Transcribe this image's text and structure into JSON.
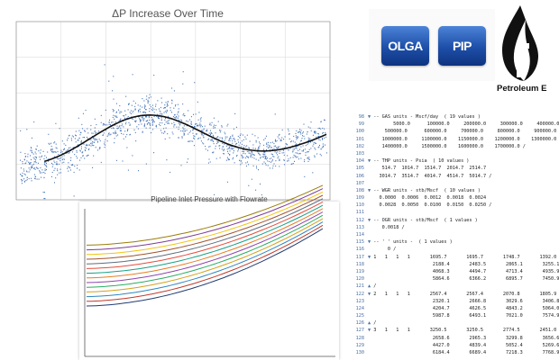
{
  "scatter_chart": {
    "title": "ΔP Increase Over Time",
    "colors": {
      "points": "#4a77b8",
      "trend": "#111111",
      "grid": "#dddddd",
      "frame": "#888888"
    }
  },
  "curve_chart": {
    "title": "Pipeline Inlet Pressure with Flowrate",
    "line_colors": [
      "#1f3b73",
      "#c0392b",
      "#2e86c1",
      "#d4a017",
      "#27ae60",
      "#8e44ad",
      "#e67e22",
      "#16a085",
      "#e74c3c",
      "#5d6d7e",
      "#a0522d",
      "#f1c40f",
      "#7d3c98",
      "#9a7d0a"
    ]
  },
  "logos": {
    "olga": "OLGA",
    "pip": "PIP",
    "petroleum_text": "Petroleum E"
  },
  "code": {
    "lines": [
      {
        "n": "98",
        "fold": "▼",
        "t": " -- GAS units - Mscf/day  ( 19 values )"
      },
      {
        "n": "99",
        "fold": "",
        "t": "        5000.0      100000.0     200000.0     300000.0     400000.0"
      },
      {
        "n": "100",
        "fold": "",
        "t": "     500000.0      600000.0     700000.0     800000.0     900000.0"
      },
      {
        "n": "101",
        "fold": "",
        "t": "    1000000.0     1100000.0    1150000.0    1200000.0    1300000.0"
      },
      {
        "n": "102",
        "fold": "",
        "t": "    1400000.0     1500000.0    1600000.0    1700000.0 /"
      },
      {
        "n": "103",
        "fold": "",
        "t": ""
      },
      {
        "n": "104",
        "fold": "▼",
        "t": " -- THP units - Psia  ( 10 values )"
      },
      {
        "n": "105",
        "fold": "",
        "t": "    514.7  1014.7  1514.7  2014.7  2514.7"
      },
      {
        "n": "106",
        "fold": "",
        "t": "   3014.7  3514.7  4014.7  4514.7  5014.7 /"
      },
      {
        "n": "107",
        "fold": "",
        "t": ""
      },
      {
        "n": "108",
        "fold": "▼",
        "t": " -- WGR units - stb/Mscf  ( 10 values )"
      },
      {
        "n": "109",
        "fold": "",
        "t": "   0.0000  0.0006  0.0012  0.0018  0.0024"
      },
      {
        "n": "110",
        "fold": "",
        "t": "   0.0028  0.0050  0.0100  0.0150  0.0250 /"
      },
      {
        "n": "111",
        "fold": "",
        "t": ""
      },
      {
        "n": "112",
        "fold": "▼",
        "t": " -- OGR units - stb/Mscf  ( 1 values )"
      },
      {
        "n": "113",
        "fold": "",
        "t": "    0.0018 /"
      },
      {
        "n": "114",
        "fold": "",
        "t": ""
      },
      {
        "n": "115",
        "fold": "▼",
        "t": " -- ' ' units -  ( 1 values )"
      },
      {
        "n": "116",
        "fold": "",
        "t": "      0 /"
      },
      {
        "n": "117",
        "fold": "▼",
        "t": " 1   1   1   1       1695.7       1695.7       1748.7       1392.0"
      },
      {
        "n": "118",
        "fold": "",
        "t": "                      2188.4       2483.5       2865.1       3255.1"
      },
      {
        "n": "119",
        "fold": "",
        "t": "                      4068.3       4494.7       4713.4       4935.9"
      },
      {
        "n": "120",
        "fold": "",
        "t": "                      5864.6       6366.2       6895.7       7450.9"
      },
      {
        "n": "121",
        "fold": "▲",
        "t": " /"
      },
      {
        "n": "122",
        "fold": "▼",
        "t": " 2   1   1   1       2567.4       2567.4       2070.8       1805.9"
      },
      {
        "n": "123",
        "fold": "",
        "t": "                      2320.1       2666.8       3029.6       3406.8"
      },
      {
        "n": "124",
        "fold": "",
        "t": "                      4204.7       4626.5       4843.2       5064.0"
      },
      {
        "n": "125",
        "fold": "",
        "t": "                      5987.8       6493.1       7021.0       7574.9"
      },
      {
        "n": "126",
        "fold": "▲",
        "t": " /"
      },
      {
        "n": "127",
        "fold": "▼",
        "t": " 3   1   1   1       3250.5       3250.5       2774.5       2451.0"
      },
      {
        "n": "128",
        "fold": "",
        "t": "                      2658.6       2965.3       3299.8       3656.6"
      },
      {
        "n": "129",
        "fold": "",
        "t": "                      4427.0       4839.4       5052.4       5269.6"
      },
      {
        "n": "130",
        "fold": "",
        "t": "                      6184.4       6689.4       7218.3       7768.9"
      }
    ]
  }
}
